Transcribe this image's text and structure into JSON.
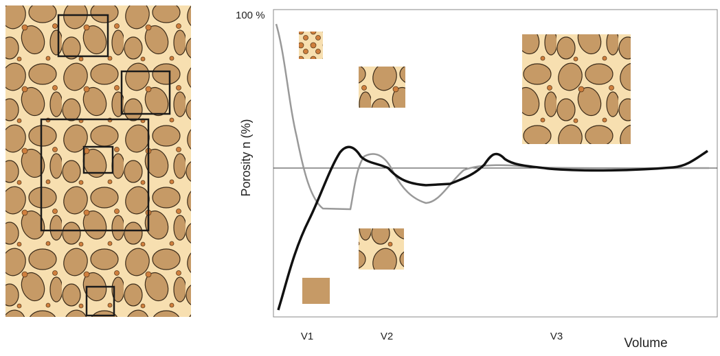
{
  "axis": {
    "y_top": "100 %",
    "y_label": "Porosity n (%)",
    "x_labels": [
      "V1",
      "V2",
      "V3"
    ],
    "x_label": "Volume"
  }
}
